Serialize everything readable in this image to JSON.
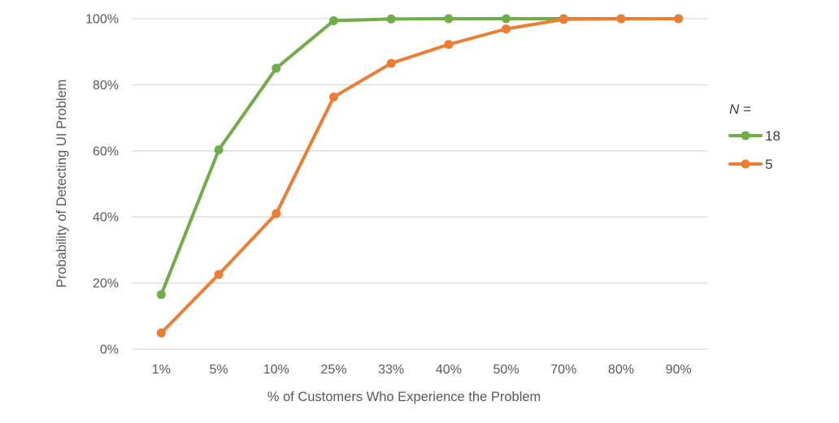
{
  "chart_data": {
    "type": "line",
    "title": "",
    "xlabel": "% of Customers Who Experience the Problem",
    "ylabel": "Probability of Detecting UI Problem",
    "categories": [
      "1%",
      "5%",
      "10%",
      "25%",
      "33%",
      "40%",
      "50%",
      "70%",
      "80%",
      "90%"
    ],
    "ylim": [
      0,
      100
    ],
    "yticks": [
      "0%",
      "20%",
      "40%",
      "60%",
      "80%",
      "100%"
    ],
    "ytick_values": [
      0,
      20,
      40,
      60,
      80,
      100
    ],
    "grid": true,
    "legend": {
      "title_italic": "N",
      "title_rest": " =",
      "placement": "right"
    },
    "series": [
      {
        "name": "18",
        "color": "#70ad47",
        "values": [
          16.5,
          60.3,
          85.0,
          99.4,
          99.9,
          99.99,
          100,
          100,
          100,
          100
        ]
      },
      {
        "name": "5",
        "color": "#ed7d31",
        "values": [
          4.9,
          22.6,
          41.0,
          76.3,
          86.5,
          92.2,
          96.9,
          99.8,
          99.97,
          100
        ]
      }
    ]
  }
}
